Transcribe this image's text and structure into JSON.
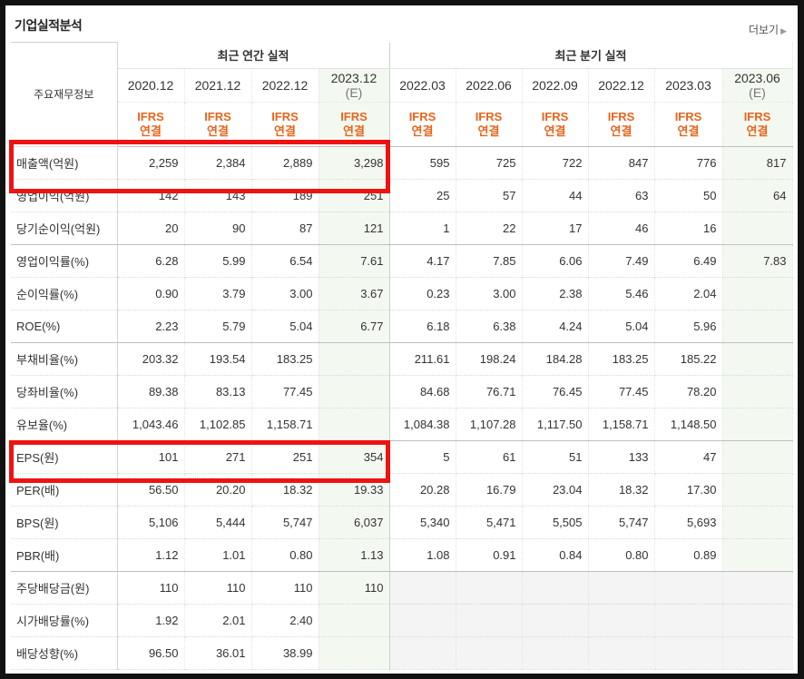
{
  "section": {
    "title": "기업실적분석",
    "more_label": "더보기"
  },
  "table": {
    "row_header_label": "주요재무정보",
    "groups": [
      "최근 연간 실적",
      "최근 분기 실적"
    ],
    "periods": [
      {
        "label": "2020.12",
        "est": ""
      },
      {
        "label": "2021.12",
        "est": ""
      },
      {
        "label": "2022.12",
        "est": ""
      },
      {
        "label": "2023.12",
        "est": "(E)"
      },
      {
        "label": "2022.03",
        "est": ""
      },
      {
        "label": "2022.06",
        "est": ""
      },
      {
        "label": "2022.09",
        "est": ""
      },
      {
        "label": "2022.12",
        "est": ""
      },
      {
        "label": "2023.03",
        "est": ""
      },
      {
        "label": "2023.06",
        "est": "(E)"
      }
    ],
    "basis_line1": "IFRS",
    "basis_line2": "연결",
    "rows": [
      {
        "label": "매출액(억원)",
        "values": [
          "2,259",
          "2,384",
          "2,889",
          "3,298",
          "595",
          "725",
          "722",
          "847",
          "776",
          "817"
        ]
      },
      {
        "label": "영업이익(억원)",
        "values": [
          "142",
          "143",
          "189",
          "251",
          "25",
          "57",
          "44",
          "63",
          "50",
          "64"
        ]
      },
      {
        "label": "당기순이익(억원)",
        "values": [
          "20",
          "90",
          "87",
          "121",
          "1",
          "22",
          "17",
          "46",
          "16",
          ""
        ]
      },
      {
        "label": "영업이익률(%)",
        "values": [
          "6.28",
          "5.99",
          "6.54",
          "7.61",
          "4.17",
          "7.85",
          "6.06",
          "7.49",
          "6.49",
          "7.83"
        ]
      },
      {
        "label": "순이익률(%)",
        "values": [
          "0.90",
          "3.79",
          "3.00",
          "3.67",
          "0.23",
          "3.00",
          "2.38",
          "5.46",
          "2.04",
          ""
        ]
      },
      {
        "label": "ROE(%)",
        "values": [
          "2.23",
          "5.79",
          "5.04",
          "6.77",
          "6.18",
          "6.38",
          "4.24",
          "5.04",
          "5.96",
          ""
        ]
      },
      {
        "label": "부채비율(%)",
        "values": [
          "203.32",
          "193.54",
          "183.25",
          "",
          "211.61",
          "198.24",
          "184.28",
          "183.25",
          "185.22",
          ""
        ]
      },
      {
        "label": "당좌비율(%)",
        "values": [
          "89.38",
          "83.13",
          "77.45",
          "",
          "84.68",
          "76.71",
          "76.45",
          "77.45",
          "78.20",
          ""
        ]
      },
      {
        "label": "유보율(%)",
        "values": [
          "1,043.46",
          "1,102.85",
          "1,158.71",
          "",
          "1,084.38",
          "1,107.28",
          "1,117.50",
          "1,158.71",
          "1,148.50",
          ""
        ]
      },
      {
        "label": "EPS(원)",
        "values": [
          "101",
          "271",
          "251",
          "354",
          "5",
          "61",
          "51",
          "133",
          "47",
          ""
        ]
      },
      {
        "label": "PER(배)",
        "values": [
          "56.50",
          "20.20",
          "18.32",
          "19.33",
          "20.28",
          "16.79",
          "23.04",
          "18.32",
          "17.30",
          ""
        ]
      },
      {
        "label": "BPS(원)",
        "values": [
          "5,106",
          "5,444",
          "5,747",
          "6,037",
          "5,340",
          "5,471",
          "5,505",
          "5,747",
          "5,693",
          ""
        ]
      },
      {
        "label": "PBR(배)",
        "values": [
          "1.12",
          "1.01",
          "0.80",
          "1.13",
          "1.08",
          "0.91",
          "0.84",
          "0.80",
          "0.89",
          ""
        ]
      },
      {
        "label": "주당배당금(원)",
        "values": [
          "110",
          "110",
          "110",
          "110",
          "",
          "",
          "",
          "",
          "",
          ""
        ]
      },
      {
        "label": "시가배당률(%)",
        "values": [
          "1.92",
          "2.01",
          "2.40",
          "",
          "",
          "",
          "",
          "",
          "",
          ""
        ]
      },
      {
        "label": "배당성향(%)",
        "values": [
          "96.50",
          "36.01",
          "38.99",
          "",
          "",
          "",
          "",
          "",
          "",
          ""
        ]
      }
    ]
  },
  "highlight_color": "#ee1212",
  "accent_color": "#e8641b"
}
